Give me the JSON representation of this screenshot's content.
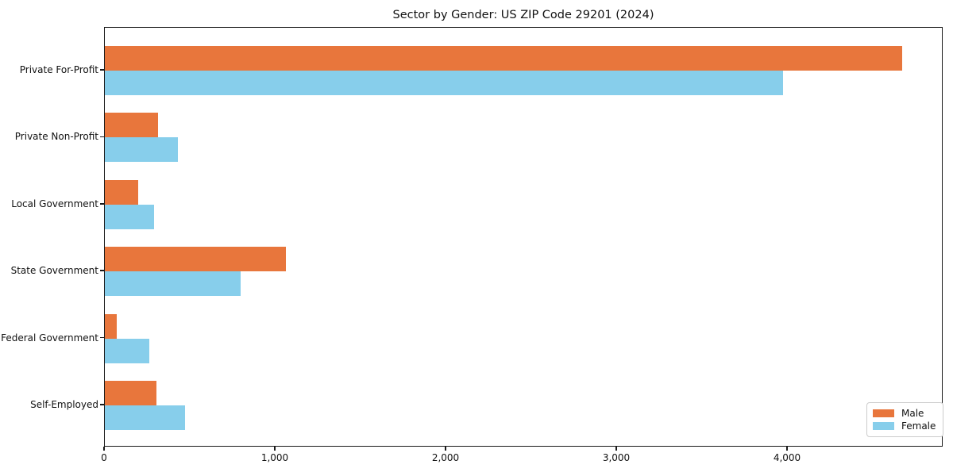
{
  "title": "Sector by Gender: US ZIP Code 29201 (2024)",
  "chart_data": {
    "type": "bar",
    "orientation": "horizontal",
    "title": "Sector by Gender: US ZIP Code 29201 (2024)",
    "categories": [
      "Private For-Profit",
      "Private Non-Profit",
      "Local Government",
      "State Government",
      "Federal Government",
      "Self-Employed"
    ],
    "series": [
      {
        "name": "Male",
        "color": "#e8763c",
        "values": [
          4670,
          310,
          195,
          1060,
          70,
          300
        ]
      },
      {
        "name": "Female",
        "color": "#87ceeb",
        "values": [
          3970,
          430,
          290,
          795,
          260,
          470
        ]
      }
    ],
    "xlabel": "",
    "ylabel": "",
    "xlim": [
      0,
      4910
    ],
    "xticks": [
      0,
      1000,
      2000,
      3000,
      4000
    ],
    "xtick_labels": [
      "0",
      "1,000",
      "2,000",
      "3,000",
      "4,000"
    ],
    "grid": false,
    "legend_position": "lower right",
    "background_color": "#ffffff",
    "spine_color": "#1a1a1a"
  }
}
